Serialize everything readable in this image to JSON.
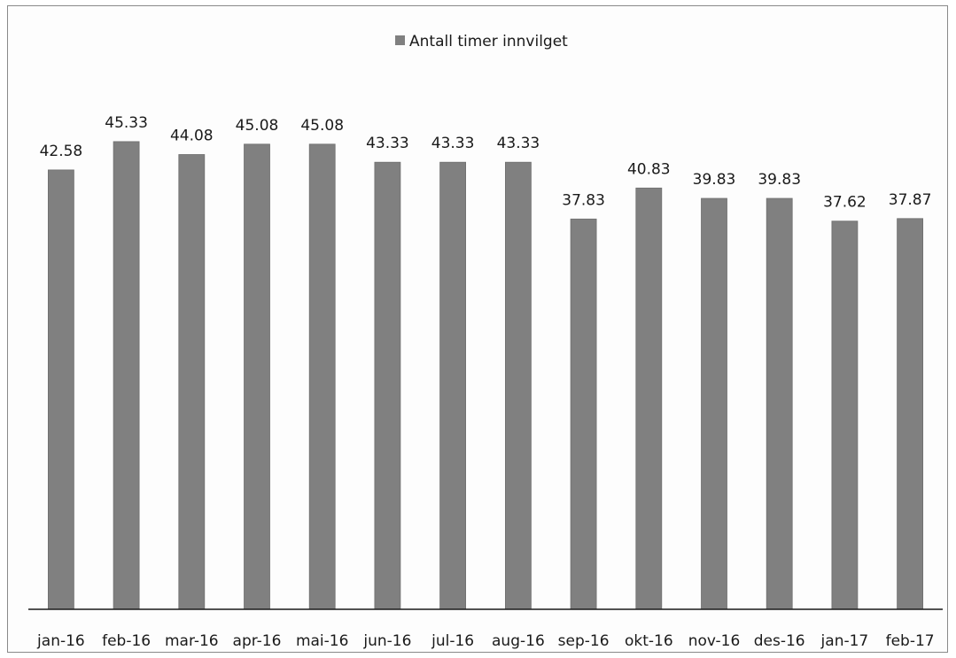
{
  "chart_data": {
    "type": "bar",
    "categories": [
      "jan-16",
      "feb-16",
      "mar-16",
      "apr-16",
      "mai-16",
      "jun-16",
      "jul-16",
      "aug-16",
      "sep-16",
      "okt-16",
      "nov-16",
      "des-16",
      "jan-17",
      "feb-17"
    ],
    "series": [
      {
        "name": "Antall timer innvilget",
        "values": [
          42.58,
          45.33,
          44.08,
          45.08,
          45.08,
          43.33,
          43.33,
          43.33,
          37.83,
          40.83,
          39.83,
          39.83,
          37.62,
          37.87
        ],
        "color": "#808080"
      }
    ],
    "ylim": [
      0,
      50
    ],
    "grid": false,
    "legend": "top-center",
    "data_labels": true,
    "title": "",
    "xlabel": "",
    "ylabel": ""
  }
}
